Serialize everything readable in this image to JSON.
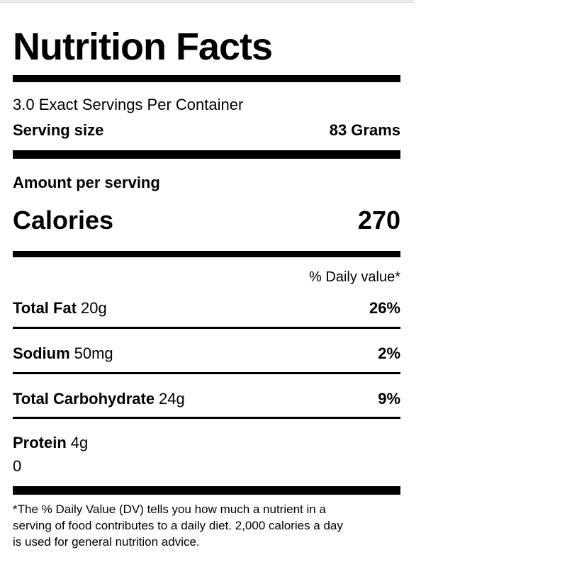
{
  "label": {
    "title": "Nutrition Facts",
    "servings_per_container": "3.0 Exact Servings Per Container",
    "serving_size": {
      "label": "Serving size",
      "value": "83 Grams"
    },
    "amount_per_serving_label": "Amount per serving",
    "calories": {
      "label": "Calories",
      "value": "270"
    },
    "daily_value_header": "% Daily value*",
    "nutrients": [
      {
        "name": "Total Fat",
        "amount": "20g",
        "daily_value": "26%"
      },
      {
        "name": "Sodium",
        "amount": "50mg",
        "daily_value": "2%"
      },
      {
        "name": "Total Carbohydrate",
        "amount": "24g",
        "daily_value": "9%"
      },
      {
        "name": "Protein",
        "amount": "4g",
        "daily_value": ""
      }
    ],
    "protein_extra_value": "0",
    "footnote_lines": [
      "*The % Daily Value (DV) tells you how much a nutrient in a",
      "serving of food contributes to a daily diet. 2,000 calories a day",
      "is used for general nutrition advice."
    ]
  },
  "colors": {
    "text": "#000000",
    "rules": "#000000",
    "window_strip": "#eaecf0"
  }
}
